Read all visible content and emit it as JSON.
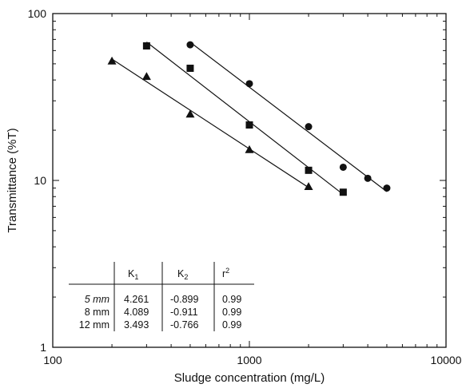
{
  "chart_data": {
    "type": "scatter",
    "xscale": "log",
    "yscale": "log",
    "xlim": [
      100,
      10000
    ],
    "ylim": [
      1,
      100
    ],
    "xlabel": "Sludge concentration (mg/L)",
    "ylabel": "Transmittance (%T)",
    "x_ticks": [
      "100",
      "1000",
      "10000"
    ],
    "y_ticks": [
      "1",
      "10",
      "100"
    ],
    "grid": false,
    "series": [
      {
        "marker": "circle",
        "points": [
          [
            500,
            65
          ],
          [
            1000,
            38
          ],
          [
            2000,
            21
          ],
          [
            3000,
            12
          ],
          [
            4000,
            10.3
          ],
          [
            5000,
            9
          ]
        ],
        "fit_range": [
          500,
          5000
        ]
      },
      {
        "marker": "square",
        "points": [
          [
            300,
            64
          ],
          [
            500,
            47
          ],
          [
            1000,
            21.5
          ],
          [
            2000,
            11.5
          ],
          [
            3000,
            8.5
          ]
        ],
        "fit_range": [
          300,
          3000
        ]
      },
      {
        "marker": "triangle",
        "points": [
          [
            200,
            52
          ],
          [
            300,
            42
          ],
          [
            500,
            25
          ],
          [
            1000,
            15.3
          ],
          [
            2000,
            9.2
          ]
        ],
        "fit_range": [
          200,
          2000
        ]
      }
    ],
    "table": {
      "headers": [
        "",
        "K1",
        "K2",
        "r2"
      ],
      "rows": [
        [
          "5 mm",
          "4.261",
          "-0.899",
          "0.99"
        ],
        [
          "8 mm",
          "4.089",
          "-0.911",
          "0.99"
        ],
        [
          "12 mm",
          "3.493",
          "-0.766",
          "0.99"
        ]
      ]
    },
    "colors": {
      "ink": "#111111",
      "background": "#ffffff"
    }
  }
}
